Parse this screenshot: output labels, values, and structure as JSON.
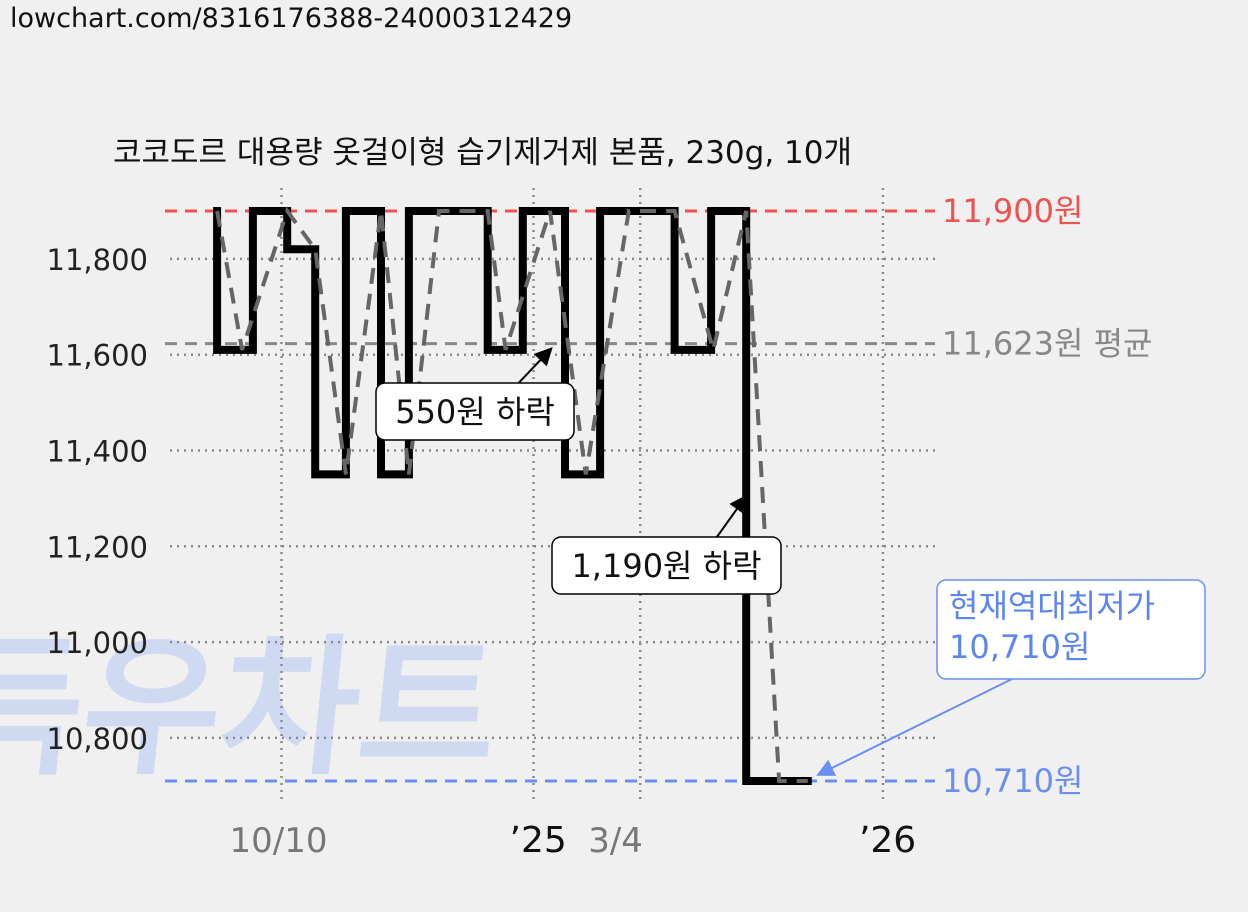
{
  "url": "lowchart.com/8316176388-24000312429",
  "watermark": "득우차트",
  "chart_data": {
    "type": "line",
    "title": "코코도르 대용량 옷걸이형 습기제거제 본품, 230g, 10개",
    "ylim": [
      10680,
      11960
    ],
    "yticks": [
      {
        "value": 10800,
        "label": "10,800"
      },
      {
        "value": 11000,
        "label": "11,000"
      },
      {
        "value": 11200,
        "label": "11,200"
      },
      {
        "value": 11400,
        "label": "11,400"
      },
      {
        "value": 11600,
        "label": "11,600"
      },
      {
        "value": 11800,
        "label": "11,800"
      }
    ],
    "xlim": [
      0,
      100
    ],
    "xticks": [
      {
        "pos": 12.5,
        "label": "10/10",
        "style": "normal"
      },
      {
        "pos": 47.7,
        "label": "’25",
        "style": "year"
      },
      {
        "pos": 62.6,
        "label": "3/4",
        "style": "normal"
      },
      {
        "pos": 96.5,
        "label": "’26",
        "style": "year"
      }
    ],
    "grid": true,
    "reference_lines": [
      {
        "value": 11900,
        "label": "11,900원",
        "kind": "max",
        "color": "#ef5350"
      },
      {
        "value": 11623,
        "label": "11,623원 평균",
        "kind": "avg",
        "color": "#888888"
      },
      {
        "value": 10710,
        "label": "10,710원",
        "kind": "min",
        "color": "#6a8fef"
      }
    ],
    "series": [
      {
        "kind": "step",
        "color": "#000000",
        "points": [
          [
            3.5,
            11900
          ],
          [
            3.5,
            11610
          ],
          [
            8.5,
            11610
          ],
          [
            8.5,
            11900
          ],
          [
            13.3,
            11900
          ],
          [
            13.3,
            11820
          ],
          [
            17.2,
            11820
          ],
          [
            17.2,
            11350
          ],
          [
            21.5,
            11350
          ],
          [
            21.5,
            11900
          ],
          [
            26.4,
            11900
          ],
          [
            26.4,
            11350
          ],
          [
            30.3,
            11350
          ],
          [
            30.3,
            11900
          ],
          [
            41.3,
            11900
          ],
          [
            41.3,
            11610
          ],
          [
            46.2,
            11610
          ],
          [
            46.2,
            11900
          ],
          [
            52.1,
            11900
          ],
          [
            52.1,
            11350
          ],
          [
            57.0,
            11350
          ],
          [
            57.0,
            11900
          ],
          [
            67.4,
            11900
          ],
          [
            67.4,
            11610
          ],
          [
            72.5,
            11610
          ],
          [
            72.5,
            11900
          ],
          [
            77.4,
            11900
          ],
          [
            77.4,
            10710
          ],
          [
            86.0,
            10710
          ]
        ]
      },
      {
        "kind": "trend",
        "color": "#666666",
        "points": [
          [
            3.5,
            11900
          ],
          [
            7.0,
            11610
          ],
          [
            13.3,
            11900
          ],
          [
            17.2,
            11820
          ],
          [
            21.5,
            11350
          ],
          [
            26.4,
            11900
          ],
          [
            30.3,
            11350
          ],
          [
            34.5,
            11900
          ],
          [
            41.3,
            11900
          ],
          [
            43.8,
            11610
          ],
          [
            50.0,
            11900
          ],
          [
            55.0,
            11350
          ],
          [
            61.0,
            11900
          ],
          [
            67.4,
            11900
          ],
          [
            72.8,
            11610
          ],
          [
            77.4,
            11900
          ],
          [
            82.0,
            10710
          ],
          [
            86.0,
            10710
          ]
        ]
      }
    ],
    "annotations": [
      {
        "text": "550원 하락",
        "arrow_to": [
          50.2,
          11613
        ]
      },
      {
        "text": "1,190원 하락",
        "arrow_to": [
          77.4,
          11305
        ]
      }
    ],
    "low_callout": {
      "line1": "현재역대최저가",
      "line2": "10,710원",
      "arrow_to": [
        86.0,
        10710
      ]
    }
  }
}
